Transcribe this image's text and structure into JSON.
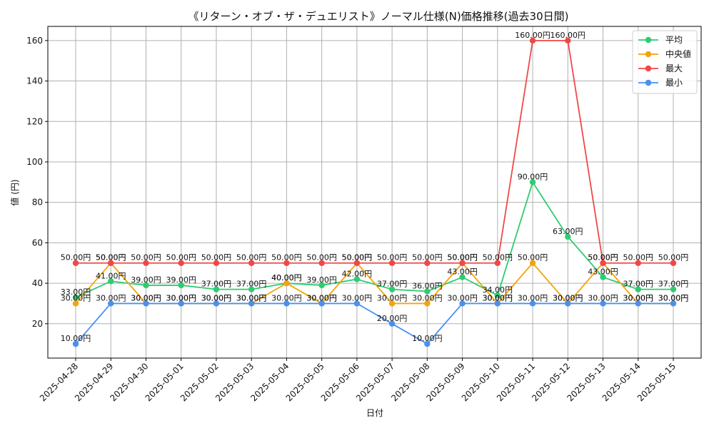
{
  "chart_data": {
    "type": "line",
    "title": "《リターン・オブ・ザ・デュエリスト》ノーマル仕様(N)価格推移(過去30日間)",
    "xlabel": "日付",
    "ylabel": "値 (円)",
    "ylim": [
      3,
      167
    ],
    "yticks": [
      20,
      40,
      60,
      80,
      100,
      120,
      140,
      160
    ],
    "grid": true,
    "legend_position": "top-right",
    "value_suffix": "円",
    "categories": [
      "2025-04-28",
      "2025-04-29",
      "2025-04-30",
      "2025-05-01",
      "2025-05-02",
      "2025-05-03",
      "2025-05-04",
      "2025-05-05",
      "2025-05-06",
      "2025-05-07",
      "2025-05-08",
      "2025-05-09",
      "2025-05-10",
      "2025-05-11",
      "2025-05-12",
      "2025-05-13",
      "2025-05-14",
      "2025-05-15"
    ],
    "series": [
      {
        "name": "平均",
        "color": "#2ecc71",
        "values": [
          33,
          41,
          39,
          39,
          37,
          37,
          40,
          39,
          42,
          37,
          36,
          43,
          34,
          90,
          63,
          43,
          37,
          37
        ]
      },
      {
        "name": "中央値",
        "color": "#f5a30a",
        "values": [
          30,
          50,
          30,
          30,
          30,
          30,
          40,
          30,
          50,
          30,
          30,
          50,
          30,
          50,
          30,
          50,
          30,
          30
        ]
      },
      {
        "name": "最大",
        "color": "#f04848",
        "values": [
          50,
          50,
          50,
          50,
          50,
          50,
          50,
          50,
          50,
          50,
          50,
          50,
          50,
          160,
          160,
          50,
          50,
          50
        ]
      },
      {
        "name": "最小",
        "color": "#4a90f0",
        "values": [
          10,
          30,
          30,
          30,
          30,
          30,
          30,
          30,
          30,
          20,
          10,
          30,
          30,
          30,
          30,
          30,
          30,
          30
        ]
      }
    ]
  }
}
